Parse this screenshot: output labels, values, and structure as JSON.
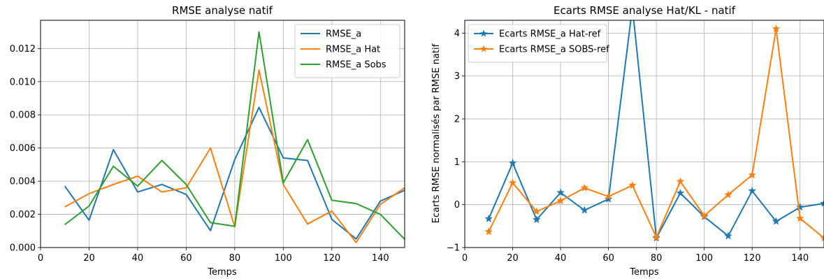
{
  "colors": {
    "blue": "#1f77b4",
    "orange": "#ff7f0e",
    "green": "#2ca02c",
    "grid": "#b0b0b0"
  },
  "chart_data": [
    {
      "type": "line",
      "title": "RMSE analyse natif",
      "xlabel": "Temps",
      "ylabel": "",
      "xlim": [
        0,
        150
      ],
      "ylim": [
        0,
        0.0137
      ],
      "xticks": [
        0,
        20,
        40,
        60,
        80,
        100,
        120,
        140
      ],
      "xtick_labels": [
        "0",
        "20",
        "40",
        "60",
        "80",
        "100",
        "120",
        "140"
      ],
      "yticks": [
        0,
        0.002,
        0.004,
        0.006,
        0.008,
        0.01,
        0.012
      ],
      "ytick_labels": [
        "0.000",
        "0.002",
        "0.004",
        "0.006",
        "0.008",
        "0.010",
        "0.012"
      ],
      "grid": true,
      "legend_position": "top-right",
      "x": [
        10,
        20,
        30,
        40,
        50,
        60,
        70,
        80,
        90,
        100,
        110,
        120,
        130,
        140,
        150
      ],
      "series": [
        {
          "name": "RMSE_a",
          "color": "#1f77b4",
          "marker": "none",
          "values": [
            0.0037,
            0.00165,
            0.0059,
            0.00335,
            0.0038,
            0.0032,
            0.00102,
            0.0053,
            0.00845,
            0.0054,
            0.00525,
            0.0017,
            0.00052,
            0.0028,
            0.00345
          ]
        },
        {
          "name": "RMSE_a Hat",
          "color": "#ff7f0e",
          "marker": "none",
          "values": [
            0.00245,
            0.00325,
            0.0038,
            0.0043,
            0.00335,
            0.0036,
            0.006,
            0.00125,
            0.0107,
            0.0038,
            0.00142,
            0.0022,
            0.0003,
            0.0026,
            0.0036
          ]
        },
        {
          "name": "RMSE_a Sobs",
          "color": "#2ca02c",
          "marker": "none",
          "values": [
            0.00138,
            0.0025,
            0.0049,
            0.0037,
            0.00525,
            0.0038,
            0.0015,
            0.00128,
            0.013,
            0.0039,
            0.0065,
            0.00285,
            0.00265,
            0.002,
            0.0005
          ]
        }
      ]
    },
    {
      "type": "line",
      "title": "Ecarts RMSE analyse Hat/KL - natif",
      "xlabel": "Temps",
      "ylabel": "Ecarts RMSE normalisés par RMSE natif",
      "xlim": [
        0,
        150
      ],
      "ylim": [
        -1,
        4.3
      ],
      "xticks": [
        0,
        20,
        40,
        60,
        80,
        100,
        120,
        140
      ],
      "xtick_labels": [
        "0",
        "20",
        "40",
        "60",
        "80",
        "100",
        "120",
        "140"
      ],
      "yticks": [
        -1,
        0,
        1,
        2,
        3,
        4
      ],
      "ytick_labels": [
        "−1",
        "0",
        "1",
        "2",
        "3",
        "4"
      ],
      "grid": true,
      "legend_position": "top-left",
      "x": [
        10,
        20,
        30,
        40,
        50,
        60,
        70,
        80,
        90,
        100,
        110,
        120,
        130,
        140,
        150
      ],
      "series": [
        {
          "name": "Ecarts RMSE_a Hat-ref",
          "color": "#1f77b4",
          "marker": "star",
          "values": [
            -0.33,
            0.97,
            -0.35,
            0.28,
            -0.13,
            0.13,
            4.6,
            -0.78,
            0.27,
            -0.28,
            -0.73,
            0.32,
            -0.39,
            -0.06,
            0.03
          ]
        },
        {
          "name": "Ecarts RMSE_a SOBS-ref",
          "color": "#ff7f0e",
          "marker": "star",
          "values": [
            -0.63,
            0.51,
            -0.16,
            0.09,
            0.39,
            0.19,
            0.45,
            -0.76,
            0.54,
            -0.26,
            0.23,
            0.69,
            4.1,
            -0.32,
            -0.78
          ]
        }
      ]
    }
  ]
}
